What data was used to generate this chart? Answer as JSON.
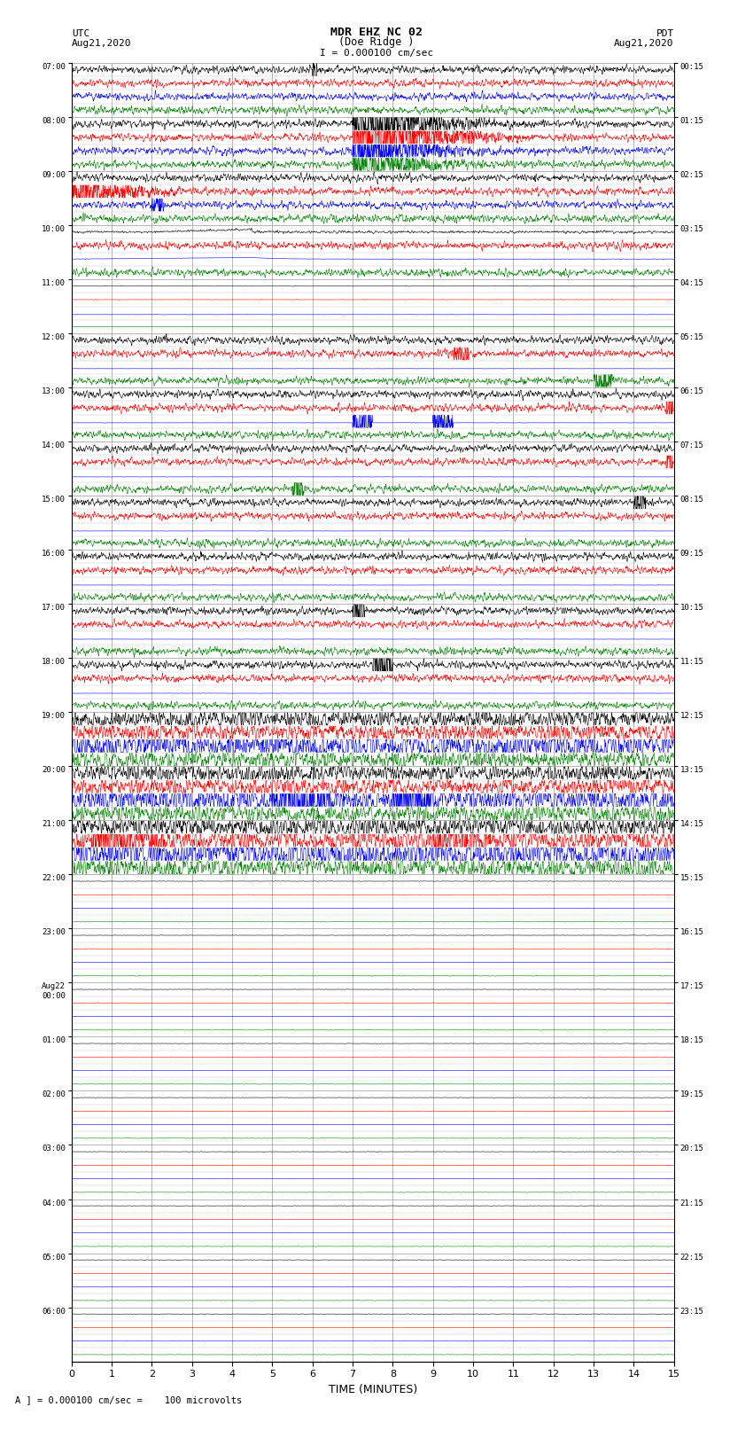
{
  "title_line1": "MDR EHZ NC 02",
  "title_line2": "(Doe Ridge )",
  "title_line3": "I = 0.000100 cm/sec",
  "label_left_top": "UTC",
  "label_left_date": "Aug21,2020",
  "label_right_top": "PDT",
  "label_right_date": "Aug21,2020",
  "xlabel": "TIME (MINUTES)",
  "footer": "A ] = 0.000100 cm/sec =    100 microvolts",
  "utc_labels": [
    "07:00",
    "08:00",
    "09:00",
    "10:00",
    "11:00",
    "12:00",
    "13:00",
    "14:00",
    "15:00",
    "16:00",
    "17:00",
    "18:00",
    "19:00",
    "20:00",
    "21:00",
    "22:00",
    "23:00",
    "Aug22\n00:00",
    "01:00",
    "02:00",
    "03:00",
    "04:00",
    "05:00",
    "06:00"
  ],
  "pdt_labels": [
    "00:15",
    "01:15",
    "02:15",
    "03:15",
    "04:15",
    "05:15",
    "06:15",
    "07:15",
    "08:15",
    "09:15",
    "10:15",
    "11:15",
    "12:15",
    "13:15",
    "14:15",
    "15:15",
    "16:15",
    "17:15",
    "18:15",
    "19:15",
    "20:15",
    "21:15",
    "22:15",
    "23:15"
  ],
  "colors": [
    "black",
    "red",
    "blue",
    "green"
  ],
  "bg_color": "white",
  "grid_color": "#999999",
  "xmin": 0,
  "xmax": 15,
  "xticks": [
    0,
    1,
    2,
    3,
    4,
    5,
    6,
    7,
    8,
    9,
    10,
    11,
    12,
    13,
    14,
    15
  ],
  "n_groups": 24,
  "traces_per_group": 4
}
